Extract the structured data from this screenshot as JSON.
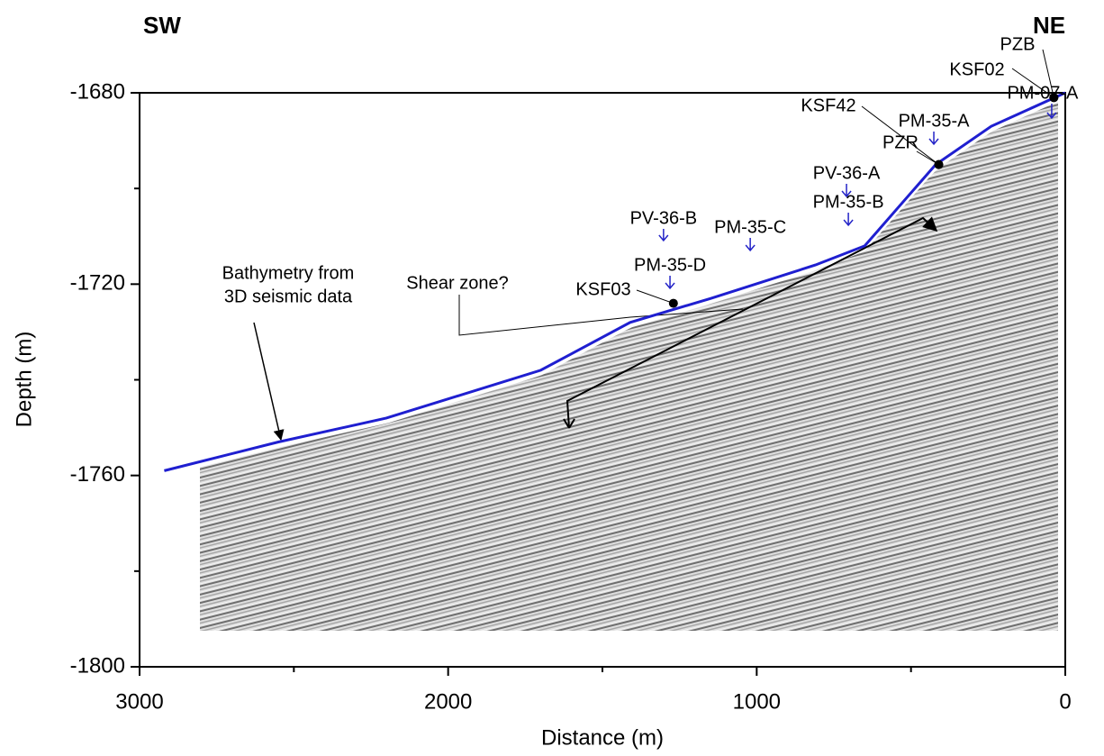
{
  "chart_data": {
    "type": "line",
    "x_label": "Distance (m)",
    "y_label": "Depth (m)",
    "xlim": [
      3000,
      0
    ],
    "ylim": [
      -1800,
      -1680
    ],
    "xticks": [
      3000,
      2000,
      1000,
      0
    ],
    "yticks": [
      -1680,
      -1720,
      -1760,
      -1800
    ],
    "x_minor_ticks": [
      2500,
      1500,
      500
    ],
    "y_minor_ticks": [
      -1700,
      -1740,
      -1780
    ],
    "series": [
      {
        "color": "#1f1fd0",
        "x": [
          2920,
          2550,
          2200,
          1700,
          1410,
          1150,
          810,
          650,
          420,
          240,
          0
        ],
        "values": [
          -1759,
          -1753,
          -1748,
          -1738,
          -1728,
          -1723,
          -1716,
          -1712,
          -1695,
          -1687,
          -1680
        ]
      }
    ],
    "points": [
      {
        "label": "KSF03",
        "x": 1270,
        "y": -1724
      },
      {
        "label": "KSF42",
        "x": 410,
        "y": -1695
      },
      {
        "label": "PZR",
        "x": 410,
        "y": -1695
      },
      {
        "label": "KSF02",
        "x": 37,
        "y": -1681
      },
      {
        "label": "PZB",
        "x": 37,
        "y": -1681
      }
    ],
    "sites": [
      {
        "label": "PV-36-B",
        "x": 1302
      },
      {
        "label": "PM-35-C",
        "x": 1021
      },
      {
        "label": "PM-35-D",
        "x": 1281
      },
      {
        "label": "PV-36-A",
        "x": 709
      },
      {
        "label": "PM-35-B",
        "x": 703
      },
      {
        "label": "PM-35-A",
        "x": 426
      },
      {
        "label": "PM-07-A",
        "x": 44
      }
    ],
    "site_color": "#2424c8",
    "left_label": "SW",
    "right_label": "NE",
    "annotations": {
      "shear_zone": "Shear zone?",
      "bathymetry": [
        "Bathymetry from",
        "3D seismic data"
      ]
    }
  }
}
